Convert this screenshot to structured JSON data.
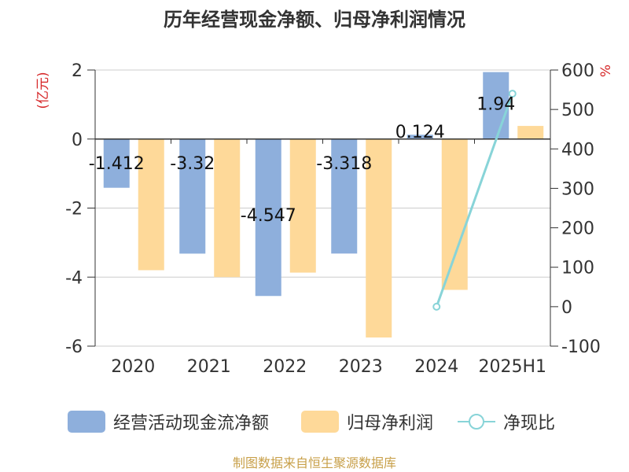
{
  "chart_data": {
    "type": "bar",
    "title": "历年经营现金净额、归母净利润情况",
    "categories": [
      "2020",
      "2021",
      "2022",
      "2023",
      "2024",
      "2025H1"
    ],
    "left_axis": {
      "unit_label": "(亿元)",
      "ticks": [
        "2",
        "0",
        "-2",
        "-4",
        "-6"
      ],
      "range": [
        -6,
        2
      ]
    },
    "right_axis": {
      "unit_label": "%",
      "ticks": [
        "600",
        "500",
        "400",
        "300",
        "200",
        "100",
        "0",
        "-100"
      ],
      "range": [
        -100,
        600
      ]
    },
    "series": [
      {
        "name": "经营活动现金流净额",
        "type": "bar",
        "axis": "left",
        "color": "#8eafdc",
        "values": [
          -1.412,
          -3.32,
          -4.547,
          -3.318,
          0.124,
          1.94
        ],
        "labels": [
          "-1.412",
          "-3.32",
          "-4.547",
          "-3.318",
          "0.124",
          "1.94"
        ]
      },
      {
        "name": "归母净利润",
        "type": "bar",
        "axis": "left",
        "color": "#fed999",
        "values": [
          -3.8,
          -4.0,
          -3.87,
          -5.75,
          -4.37,
          0.38
        ]
      },
      {
        "name": "净现比",
        "type": "line",
        "axis": "right",
        "color": "#88d4d8",
        "values": [
          null,
          null,
          null,
          null,
          0,
          540
        ]
      }
    ],
    "legend_position": "bottom",
    "grid": true
  },
  "footer": {
    "source_text": "制图数据来自恒生聚源数据库"
  }
}
